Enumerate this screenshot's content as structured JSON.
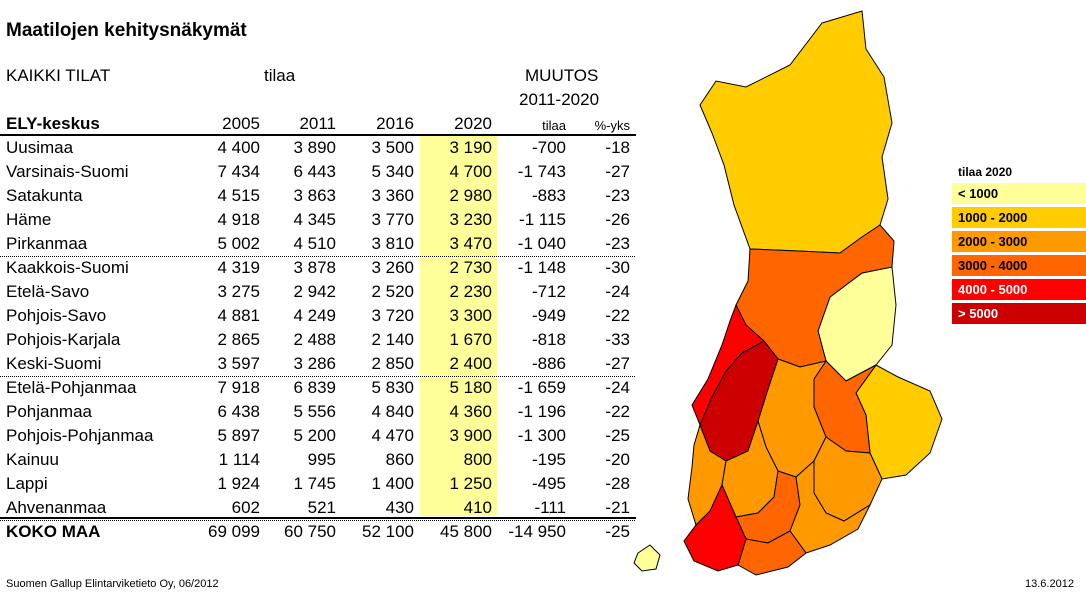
{
  "title": "Maatilojen kehitysnäkymät",
  "header": {
    "group_label": "KAIKKI TILAT",
    "unit_label": "tilaa",
    "change_label": "MUUTOS",
    "change_period": "2011-2020",
    "region_col": "ELY-keskus",
    "years": [
      "2005",
      "2011",
      "2016",
      "2020"
    ],
    "change_cols": [
      "tilaa",
      "%-yks"
    ]
  },
  "rows": [
    {
      "name": "Uusimaa",
      "v2005": "4 400",
      "v2011": "3 890",
      "v2016": "3 500",
      "v2020": "3 190",
      "chg": "-700",
      "pct": "-18"
    },
    {
      "name": "Varsinais-Suomi",
      "v2005": "7 434",
      "v2011": "6 443",
      "v2016": "5 340",
      "v2020": "4 700",
      "chg": "-1 743",
      "pct": "-27"
    },
    {
      "name": "Satakunta",
      "v2005": "4 515",
      "v2011": "3 863",
      "v2016": "3 360",
      "v2020": "2 980",
      "chg": "-883",
      "pct": "-23"
    },
    {
      "name": "Häme",
      "v2005": "4 918",
      "v2011": "4 345",
      "v2016": "3 770",
      "v2020": "3 230",
      "chg": "-1 115",
      "pct": "-26"
    },
    {
      "name": "Pirkanmaa",
      "v2005": "5 002",
      "v2011": "4 510",
      "v2016": "3 810",
      "v2020": "3 470",
      "chg": "-1 040",
      "pct": "-23"
    },
    {
      "name": "Kaakkois-Suomi",
      "v2005": "4 319",
      "v2011": "3 878",
      "v2016": "3 260",
      "v2020": "2 730",
      "chg": "-1 148",
      "pct": "-30"
    },
    {
      "name": "Etelä-Savo",
      "v2005": "3 275",
      "v2011": "2 942",
      "v2016": "2 520",
      "v2020": "2 230",
      "chg": "-712",
      "pct": "-24"
    },
    {
      "name": "Pohjois-Savo",
      "v2005": "4 881",
      "v2011": "4 249",
      "v2016": "3 720",
      "v2020": "3 300",
      "chg": "-949",
      "pct": "-22"
    },
    {
      "name": "Pohjois-Karjala",
      "v2005": "2 865",
      "v2011": "2 488",
      "v2016": "2 140",
      "v2020": "1 670",
      "chg": "-818",
      "pct": "-33"
    },
    {
      "name": "Keski-Suomi",
      "v2005": "3 597",
      "v2011": "3 286",
      "v2016": "2 850",
      "v2020": "2 400",
      "chg": "-886",
      "pct": "-27"
    },
    {
      "name": "Etelä-Pohjanmaa",
      "v2005": "7 918",
      "v2011": "6 839",
      "v2016": "5 830",
      "v2020": "5 180",
      "chg": "-1 659",
      "pct": "-24"
    },
    {
      "name": "Pohjanmaa",
      "v2005": "6 438",
      "v2011": "5 556",
      "v2016": "4 840",
      "v2020": "4 360",
      "chg": "-1 196",
      "pct": "-22"
    },
    {
      "name": "Pohjois-Pohjanmaa",
      "v2005": "5 897",
      "v2011": "5 200",
      "v2016": "4 470",
      "v2020": "3 900",
      "chg": "-1 300",
      "pct": "-25"
    },
    {
      "name": "Kainuu",
      "v2005": "1 114",
      "v2011": "995",
      "v2016": "860",
      "v2020": "800",
      "chg": "-195",
      "pct": "-20"
    },
    {
      "name": "Lappi",
      "v2005": "1 924",
      "v2011": "1 745",
      "v2016": "1 400",
      "v2020": "1 250",
      "chg": "-495",
      "pct": "-28"
    },
    {
      "name": "Ahvenanmaa",
      "v2005": "602",
      "v2011": "521",
      "v2016": "430",
      "v2020": "410",
      "chg": "-111",
      "pct": "-21"
    }
  ],
  "total": {
    "name": "KOKO MAA",
    "v2005": "69 099",
    "v2011": "60 750",
    "v2016": "52 100",
    "v2020": "45 800",
    "chg": "-14 950",
    "pct": "-25"
  },
  "footer": {
    "source": "Suomen Gallup Elintarviketieto Oy, 06/2012",
    "date": "13.6.2012"
  },
  "chart_data": {
    "type": "table",
    "legend": {
      "title": "tilaa 2020",
      "entries": [
        {
          "label": "< 1000",
          "color": "#FFFF99"
        },
        {
          "label": "1000 - 2000",
          "color": "#FFCC00"
        },
        {
          "label": "2000 - 3000",
          "color": "#FF9900"
        },
        {
          "label": "3000 - 4000",
          "color": "#FF6600"
        },
        {
          "label": "4000 - 5000",
          "color": "#FF0000"
        },
        {
          "label": "> 5000",
          "color": "#CC0000"
        }
      ]
    },
    "map_regions": [
      {
        "name": "Lappi",
        "value": 1250,
        "color": "#FFCC00"
      },
      {
        "name": "Kainuu",
        "value": 800,
        "color": "#FFFF99"
      },
      {
        "name": "Pohjois-Pohjanmaa",
        "value": 3900,
        "color": "#FF6600"
      },
      {
        "name": "Pohjois-Karjala",
        "value": 1670,
        "color": "#FFCC00"
      },
      {
        "name": "Pohjois-Savo",
        "value": 3300,
        "color": "#FF6600"
      },
      {
        "name": "Keski-Suomi",
        "value": 2400,
        "color": "#FF9900"
      },
      {
        "name": "Etelä-Savo",
        "value": 2230,
        "color": "#FF9900"
      },
      {
        "name": "Pohjanmaa",
        "value": 4360,
        "color": "#FF0000"
      },
      {
        "name": "Etelä-Pohjanmaa",
        "value": 5180,
        "color": "#CC0000"
      },
      {
        "name": "Satakunta",
        "value": 2980,
        "color": "#FF9900"
      },
      {
        "name": "Pirkanmaa",
        "value": 3470,
        "color": "#FF6600"
      },
      {
        "name": "Häme",
        "value": 3230,
        "color": "#FF6600"
      },
      {
        "name": "Kaakkois-Suomi",
        "value": 2730,
        "color": "#FF9900"
      },
      {
        "name": "Uusimaa",
        "value": 3190,
        "color": "#FF6600"
      },
      {
        "name": "Varsinais-Suomi",
        "value": 4700,
        "color": "#FF0000"
      },
      {
        "name": "Ahvenanmaa",
        "value": 410,
        "color": "#FFFF99"
      }
    ]
  }
}
